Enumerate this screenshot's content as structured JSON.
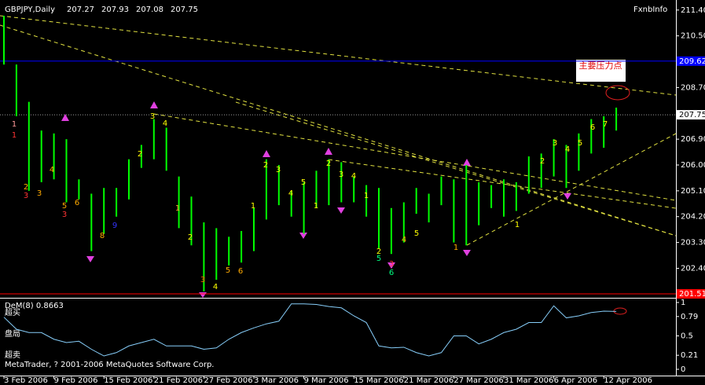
{
  "chart_data": [
    {
      "type": "ohlc",
      "title": "GBPJPY,Daily",
      "readout": [
        207.27,
        207.93,
        207.08,
        207.75
      ],
      "source": "FxnbInfo",
      "note": "主要压力点",
      "categories": [
        "3 Feb 2006",
        null,
        null,
        null,
        "9 Feb 2006",
        null,
        null,
        null,
        "15 Feb 2006",
        null,
        null,
        null,
        "21 Feb 2006",
        null,
        null,
        null,
        "27 Feb 2006",
        null,
        null,
        null,
        "3 Mar 2006",
        null,
        null,
        null,
        "9 Mar 2006",
        null,
        null,
        null,
        "15 Mar 2006",
        null,
        null,
        null,
        "21 Mar 2006",
        null,
        null,
        null,
        "27 Mar 2006",
        null,
        null,
        null,
        "31 Mar 2006",
        null,
        null,
        null,
        "6 Apr 2006",
        null,
        null,
        null,
        "12 Apr 2006",
        null
      ],
      "high": [
        211.2,
        209.5,
        208.2,
        207.2,
        207.1,
        206.9,
        205.5,
        205.0,
        205.2,
        205.2,
        206.2,
        206.7,
        207.6,
        207.3,
        205.6,
        204.9,
        204.0,
        203.8,
        203.5,
        203.7,
        204.5,
        206.2,
        206.0,
        205.1,
        205.4,
        205.8,
        206.2,
        206.1,
        205.6,
        205.3,
        205.2,
        204.5,
        204.7,
        205.2,
        205.0,
        205.6,
        205.5,
        206.0,
        205.4,
        205.3,
        205.5,
        205.4,
        206.3,
        206.4,
        206.9,
        206.7,
        207.1,
        207.6,
        207.7,
        208.0
      ],
      "low": [
        209.5,
        207.7,
        205.1,
        205.4,
        205.5,
        204.7,
        204.8,
        203.0,
        203.6,
        204.2,
        204.8,
        205.9,
        206.2,
        205.8,
        203.8,
        203.2,
        201.6,
        202.0,
        202.5,
        202.6,
        203.0,
        204.1,
        204.6,
        204.2,
        203.6,
        204.5,
        204.6,
        204.7,
        204.7,
        204.2,
        203.1,
        202.9,
        203.3,
        204.3,
        204.0,
        204.6,
        203.3,
        203.2,
        203.9,
        204.5,
        204.2,
        204.4,
        205.0,
        205.2,
        205.6,
        205.2,
        205.8,
        206.4,
        206.6,
        207.2
      ],
      "color": "#00ff00",
      "ylim": [
        201.4,
        211.75
      ],
      "yticks": [
        {
          "value": 211.4,
          "label": "211.40"
        },
        {
          "value": 210.5,
          "label": "210.50"
        },
        {
          "value": 208.7,
          "label": "208.70"
        },
        {
          "value": 206.9,
          "label": "206.90"
        },
        {
          "value": 206,
          "label": "206.00"
        },
        {
          "value": 205.1,
          "label": "205.10"
        },
        {
          "value": 204.2,
          "label": "204.20"
        },
        {
          "value": 203.3,
          "label": "203.30"
        },
        {
          "value": 202.4,
          "label": "202.40"
        }
      ],
      "levels": [
        {
          "value": 209.62,
          "color": "#0000ff"
        },
        {
          "value": 207.75,
          "color": "#ffffff"
        },
        {
          "value": 201.51,
          "color": "#ff0000"
        }
      ],
      "wave_labels": [
        "1",
        "1",
        "2",
        "3",
        "3",
        "4",
        "5",
        "3",
        "6",
        "8",
        "9",
        "2",
        "3",
        "4",
        "1",
        "2",
        "3",
        "4",
        "5",
        "6",
        "1",
        "2",
        "3",
        "4",
        "5",
        "1",
        "2",
        "3",
        "4",
        "1",
        "2",
        "5",
        "3",
        "6",
        "4",
        "5",
        "1",
        "1",
        "2",
        "3",
        "4",
        "5",
        "6",
        "7"
      ]
    },
    {
      "type": "line",
      "title": "DeM(8) 0.8663",
      "zones": [
        "超买",
        "盘局",
        "超卖"
      ],
      "footer": "MetaTrader, ? 2001-2006 MetaQuotes Software Corp.",
      "values": [
        0.78,
        0.6,
        0.55,
        0.55,
        0.45,
        0.4,
        0.42,
        0.3,
        0.2,
        0.25,
        0.35,
        0.4,
        0.45,
        0.35,
        0.35,
        0.35,
        0.3,
        0.32,
        0.45,
        0.55,
        0.62,
        0.68,
        0.72,
        0.98,
        0.98,
        0.97,
        0.94,
        0.92,
        0.8,
        0.7,
        0.35,
        0.32,
        0.33,
        0.25,
        0.2,
        0.25,
        0.5,
        0.5,
        0.38,
        0.45,
        0.55,
        0.6,
        0.7,
        0.7,
        0.95,
        0.77,
        0.8,
        0.85,
        0.87,
        0.8663
      ],
      "color": "#87cefa",
      "ylim": [
        -0.094,
        1.047
      ],
      "yticks": [
        0,
        0.21,
        0.5,
        0.79,
        1
      ]
    }
  ]
}
